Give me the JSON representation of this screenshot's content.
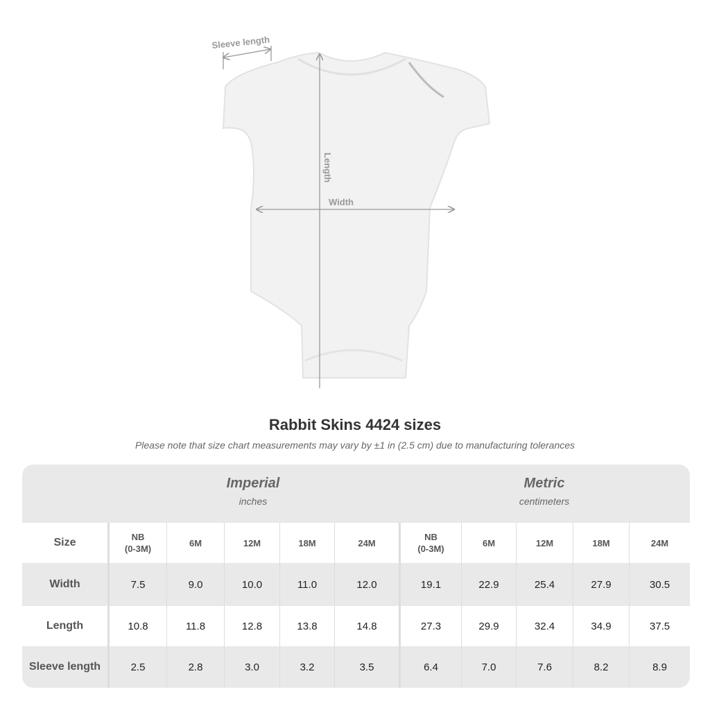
{
  "diagram": {
    "sleeve_label": "Sleeve length",
    "length_label": "Length",
    "width_label": "Width"
  },
  "title": "Rabbit Skins 4424 sizes",
  "note": "Please note that size chart measurements may vary by ±1 in (2.5 cm) due to manufacturing tolerances",
  "table": {
    "imperial": {
      "name": "Imperial",
      "unit": "inches"
    },
    "metric": {
      "name": "Metric",
      "unit": "centimeters"
    },
    "size_label": "Size",
    "imperial_sizes": [
      "NB\n(0-3M)",
      "6M",
      "12M",
      "18M",
      "24M"
    ],
    "metric_sizes": [
      "NB\n(0-3M)",
      "6M",
      "12M",
      "18M",
      "24M"
    ],
    "rows": [
      {
        "label": "Width",
        "imperial": [
          "7.5",
          "9.0",
          "10.0",
          "11.0",
          "12.0"
        ],
        "metric": [
          "19.1",
          "22.9",
          "25.4",
          "27.9",
          "30.5"
        ]
      },
      {
        "label": "Length",
        "imperial": [
          "10.8",
          "11.8",
          "12.8",
          "13.8",
          "14.8"
        ],
        "metric": [
          "27.3",
          "29.9",
          "32.4",
          "34.9",
          "37.5"
        ]
      },
      {
        "label": "Sleeve length",
        "imperial": [
          "2.5",
          "2.8",
          "3.0",
          "3.2",
          "3.5"
        ],
        "metric": [
          "6.4",
          "7.0",
          "7.6",
          "8.2",
          "8.9"
        ]
      }
    ]
  }
}
